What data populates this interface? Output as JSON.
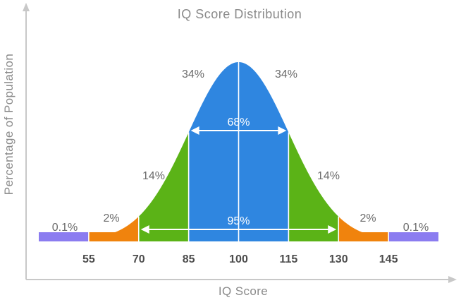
{
  "chart_data": {
    "type": "area",
    "title": "IQ Score Distribution",
    "xlabel": "IQ Score",
    "ylabel": "Percentage of Population",
    "distribution": {
      "mean": 100,
      "sd": 15
    },
    "xlim": [
      40,
      160
    ],
    "tick_labels": [
      "55",
      "70",
      "85",
      "100",
      "115",
      "130",
      "145"
    ],
    "tick_values": [
      55,
      70,
      85,
      100,
      115,
      130,
      145
    ],
    "regions": [
      {
        "from": 40,
        "to": 55,
        "label": "0.1%",
        "color": "#8b7cf0"
      },
      {
        "from": 55,
        "to": 70,
        "label": "2%",
        "color": "#f0830d"
      },
      {
        "from": 70,
        "to": 85,
        "label": "14%",
        "color": "#5bb317"
      },
      {
        "from": 85,
        "to": 100,
        "label": "34%",
        "color": "#2f86e0"
      },
      {
        "from": 100,
        "to": 115,
        "label": "34%",
        "color": "#2f86e0"
      },
      {
        "from": 115,
        "to": 130,
        "label": "14%",
        "color": "#5bb317"
      },
      {
        "from": 130,
        "to": 145,
        "label": "2%",
        "color": "#f0830d"
      },
      {
        "from": 145,
        "to": 160,
        "label": "0.1%",
        "color": "#8b7cf0"
      }
    ],
    "annotations": [
      {
        "from": 85,
        "to": 115,
        "label": "68%"
      },
      {
        "from": 70,
        "to": 130,
        "label": "95%"
      }
    ],
    "grid": false,
    "legend": "none"
  },
  "colors": {
    "axis": "#c8c8c8",
    "divider": "#ffffff"
  }
}
